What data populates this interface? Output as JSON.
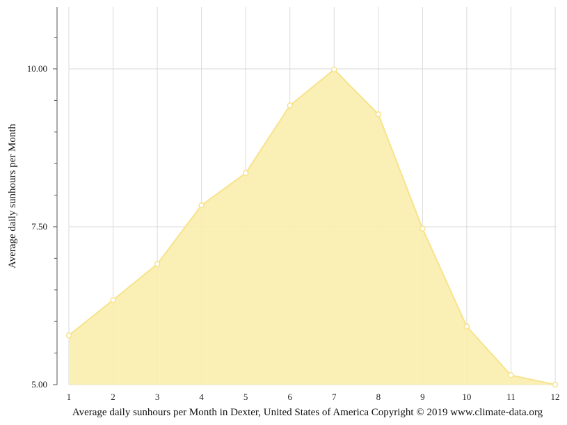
{
  "chart_data": {
    "type": "area",
    "x": [
      1,
      2,
      3,
      4,
      5,
      6,
      7,
      8,
      9,
      10,
      11,
      12
    ],
    "series": [
      {
        "values": [
          5.78,
          6.34,
          6.91,
          7.84,
          8.35,
          9.42,
          9.99,
          9.28,
          7.47,
          5.92,
          5.15,
          5.0
        ]
      }
    ],
    "xticks": [
      "1",
      "2",
      "3",
      "4",
      "5",
      "6",
      "7",
      "8",
      "9",
      "10",
      "11",
      "12"
    ],
    "yticks": [
      "5.00",
      "7.50",
      "10.00"
    ],
    "ylabel": "Average daily sunhours per Month",
    "caption": "Average daily sunhours per Month in Dexter, United States of America Copyright © 2019 www.climate-data.org",
    "ylim": [
      5.0,
      10.98
    ],
    "xlim": [
      1,
      12
    ],
    "grid": true,
    "colors": {
      "fill": "#faeeae",
      "line": "#f7e38b",
      "marker_fill": "#ffffff",
      "grid": "#d9d9d9",
      "axis": "#555555"
    }
  }
}
